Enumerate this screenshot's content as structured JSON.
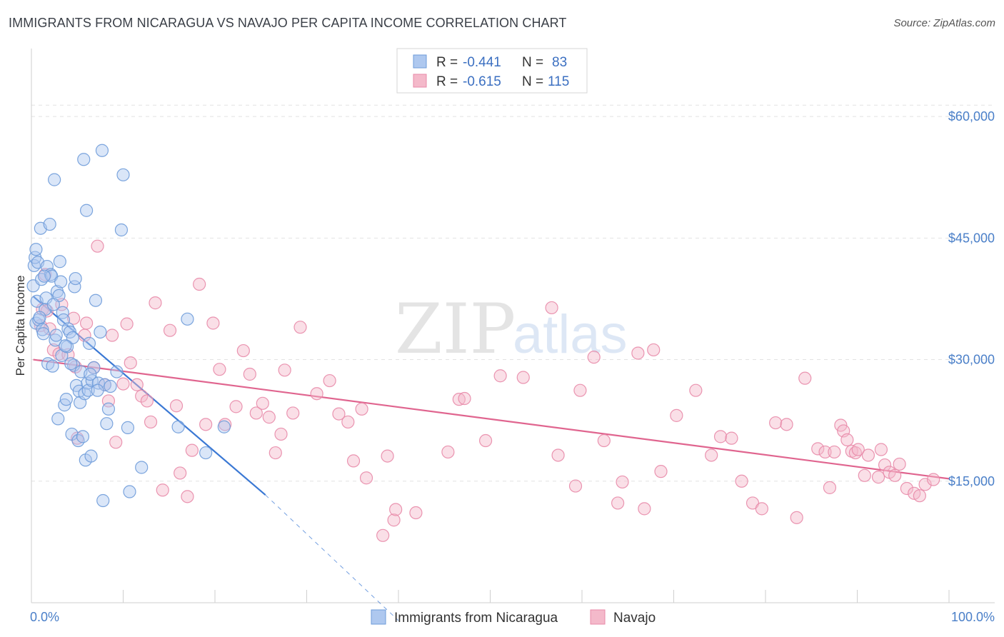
{
  "title": "IMMIGRANTS FROM NICARAGUA VS NAVAJO PER CAPITA INCOME CORRELATION CHART",
  "source": "Source: ZipAtlas.com",
  "watermark": {
    "zip": "ZIP",
    "atlas": "atlas"
  },
  "colors": {
    "blue_fill": "#aec8ef",
    "blue_stroke": "#6e9bd9",
    "blue_line": "#3a78d4",
    "pink_fill": "#f4b9ca",
    "pink_stroke": "#e88aa8",
    "pink_line": "#e0658f",
    "tick_label": "#4a7fc8",
    "grid": "#e2e2e2"
  },
  "legend": {
    "rows": [
      {
        "r_label": "R =",
        "r_value": "-0.441",
        "n_label": "N =",
        "n_value": "83"
      },
      {
        "r_label": "R =",
        "r_value": "-0.615",
        "n_label": "N =",
        "n_value": "115"
      }
    ]
  },
  "chart_data": {
    "type": "scatter",
    "xlabel": "",
    "ylabel": "Per Capita Income",
    "xlim": [
      0,
      100
    ],
    "ylim": [
      0,
      67500
    ],
    "x_tick_labels": [
      "0.0%",
      "100.0%"
    ],
    "y_ticks": [
      15000,
      30000,
      45000,
      60000
    ],
    "y_tick_labels": [
      "$15,000",
      "$30,000",
      "$45,000",
      "$60,000"
    ],
    "grid": "horizontal dashed",
    "legend_position": "top-center",
    "series": [
      {
        "name": "Immigrants from Nicaragua",
        "color": "blue",
        "trend": {
          "x0": 0.2,
          "y0": 37800,
          "x1": 25.5,
          "y1": 13300,
          "dash_to_x": 40,
          "dash_to_y": -2200
        },
        "points": [
          [
            0.2,
            39100
          ],
          [
            0.3,
            41600
          ],
          [
            0.4,
            42600
          ],
          [
            0.5,
            43600
          ],
          [
            0.5,
            34500
          ],
          [
            0.6,
            37200
          ],
          [
            0.7,
            42000
          ],
          [
            0.8,
            34900
          ],
          [
            1.0,
            46200
          ],
          [
            1.1,
            39900
          ],
          [
            1.2,
            33700
          ],
          [
            1.3,
            33200
          ],
          [
            1.5,
            36200
          ],
          [
            1.6,
            37600
          ],
          [
            1.7,
            41500
          ],
          [
            1.8,
            29500
          ],
          [
            2.0,
            46700
          ],
          [
            2.1,
            40500
          ],
          [
            2.2,
            40300
          ],
          [
            2.3,
            29200
          ],
          [
            2.5,
            52200
          ],
          [
            2.6,
            32400
          ],
          [
            2.7,
            33000
          ],
          [
            2.8,
            38400
          ],
          [
            2.9,
            22700
          ],
          [
            3.0,
            37900
          ],
          [
            3.1,
            42100
          ],
          [
            3.2,
            39600
          ],
          [
            3.3,
            30500
          ],
          [
            3.4,
            35800
          ],
          [
            3.5,
            34900
          ],
          [
            3.6,
            24400
          ],
          [
            3.8,
            25100
          ],
          [
            3.9,
            31600
          ],
          [
            4.0,
            33800
          ],
          [
            4.2,
            33400
          ],
          [
            4.4,
            20800
          ],
          [
            4.5,
            32700
          ],
          [
            4.6,
            29300
          ],
          [
            4.7,
            39000
          ],
          [
            4.8,
            40000
          ],
          [
            4.9,
            26800
          ],
          [
            5.1,
            20000
          ],
          [
            5.2,
            26100
          ],
          [
            5.3,
            24700
          ],
          [
            5.4,
            28500
          ],
          [
            5.6,
            20500
          ],
          [
            5.7,
            54700
          ],
          [
            5.8,
            25800
          ],
          [
            5.9,
            17600
          ],
          [
            6.0,
            48400
          ],
          [
            6.1,
            27100
          ],
          [
            6.2,
            26200
          ],
          [
            6.3,
            32000
          ],
          [
            6.5,
            18100
          ],
          [
            6.6,
            27400
          ],
          [
            6.8,
            29000
          ],
          [
            7.0,
            37300
          ],
          [
            7.3,
            27100
          ],
          [
            7.5,
            33400
          ],
          [
            7.7,
            55800
          ],
          [
            7.8,
            12600
          ],
          [
            8.0,
            26900
          ],
          [
            8.2,
            22100
          ],
          [
            8.4,
            23900
          ],
          [
            8.6,
            26700
          ],
          [
            9.3,
            28500
          ],
          [
            9.8,
            46000
          ],
          [
            10.0,
            52800
          ],
          [
            10.5,
            21600
          ],
          [
            10.7,
            13700
          ],
          [
            12.0,
            16700
          ],
          [
            16.0,
            21700
          ],
          [
            17.0,
            35000
          ],
          [
            19.0,
            18500
          ],
          [
            21.0,
            21700
          ],
          [
            0.9,
            35200
          ],
          [
            1.4,
            40300
          ],
          [
            2.4,
            36800
          ],
          [
            3.7,
            31700
          ],
          [
            4.3,
            29500
          ],
          [
            6.4,
            28200
          ],
          [
            7.2,
            26200
          ]
        ]
      },
      {
        "name": "Navajo",
        "color": "pink",
        "trend": {
          "x0": 0.2,
          "y0": 30000,
          "x1": 100,
          "y1": 15300
        },
        "points": [
          [
            1.0,
            34200
          ],
          [
            1.2,
            36200
          ],
          [
            1.5,
            40500
          ],
          [
            1.7,
            36000
          ],
          [
            2.0,
            33800
          ],
          [
            2.4,
            31200
          ],
          [
            3.0,
            30700
          ],
          [
            3.3,
            36800
          ],
          [
            4.0,
            30600
          ],
          [
            4.6,
            35100
          ],
          [
            4.8,
            29100
          ],
          [
            5.0,
            20300
          ],
          [
            5.8,
            33000
          ],
          [
            6.0,
            34500
          ],
          [
            6.8,
            29000
          ],
          [
            7.2,
            44000
          ],
          [
            8.0,
            26900
          ],
          [
            8.4,
            24900
          ],
          [
            8.8,
            33000
          ],
          [
            9.2,
            19800
          ],
          [
            10.0,
            27000
          ],
          [
            10.4,
            34400
          ],
          [
            10.8,
            29600
          ],
          [
            11.5,
            26900
          ],
          [
            12.0,
            25500
          ],
          [
            12.6,
            24900
          ],
          [
            13.0,
            22300
          ],
          [
            13.5,
            37000
          ],
          [
            14.3,
            13900
          ],
          [
            15.1,
            33600
          ],
          [
            15.8,
            24300
          ],
          [
            16.2,
            16000
          ],
          [
            17.0,
            13100
          ],
          [
            17.5,
            18800
          ],
          [
            18.3,
            39300
          ],
          [
            19.0,
            22000
          ],
          [
            19.8,
            34500
          ],
          [
            20.5,
            28800
          ],
          [
            21.1,
            22000
          ],
          [
            22.3,
            24200
          ],
          [
            23.1,
            31100
          ],
          [
            23.8,
            28200
          ],
          [
            24.5,
            23400
          ],
          [
            25.2,
            24600
          ],
          [
            25.9,
            22900
          ],
          [
            26.6,
            18500
          ],
          [
            27.2,
            20800
          ],
          [
            27.6,
            28700
          ],
          [
            28.5,
            23400
          ],
          [
            29.3,
            34000
          ],
          [
            31.1,
            25800
          ],
          [
            32.5,
            27400
          ],
          [
            33.5,
            23300
          ],
          [
            34.5,
            22300
          ],
          [
            35.1,
            17500
          ],
          [
            36.0,
            23900
          ],
          [
            36.5,
            15400
          ],
          [
            38.3,
            8300
          ],
          [
            38.8,
            18100
          ],
          [
            39.5,
            10200
          ],
          [
            39.7,
            11500
          ],
          [
            41.9,
            11100
          ],
          [
            45.4,
            18600
          ],
          [
            46.6,
            25100
          ],
          [
            47.2,
            25200
          ],
          [
            49.5,
            20000
          ],
          [
            51.1,
            28000
          ],
          [
            53.6,
            27800
          ],
          [
            56.7,
            36400
          ],
          [
            57.4,
            18200
          ],
          [
            59.3,
            14400
          ],
          [
            59.8,
            26200
          ],
          [
            61.3,
            30300
          ],
          [
            62.4,
            20000
          ],
          [
            63.9,
            12300
          ],
          [
            64.4,
            14900
          ],
          [
            66.1,
            30800
          ],
          [
            66.8,
            11600
          ],
          [
            67.8,
            31200
          ],
          [
            68.6,
            16200
          ],
          [
            70.3,
            23100
          ],
          [
            72.4,
            26200
          ],
          [
            74.1,
            18200
          ],
          [
            75.1,
            20500
          ],
          [
            76.3,
            20300
          ],
          [
            77.4,
            15000
          ],
          [
            78.6,
            12300
          ],
          [
            79.6,
            11600
          ],
          [
            81.1,
            22200
          ],
          [
            82.3,
            22000
          ],
          [
            83.4,
            10500
          ],
          [
            84.3,
            27700
          ],
          [
            85.7,
            19000
          ],
          [
            86.5,
            18600
          ],
          [
            87.0,
            14200
          ],
          [
            87.5,
            18600
          ],
          [
            88.2,
            21900
          ],
          [
            88.5,
            21200
          ],
          [
            88.9,
            20100
          ],
          [
            89.4,
            18700
          ],
          [
            89.8,
            18500
          ],
          [
            90.1,
            18900
          ],
          [
            90.8,
            15700
          ],
          [
            91.2,
            18200
          ],
          [
            92.3,
            15500
          ],
          [
            92.6,
            18900
          ],
          [
            93.0,
            17000
          ],
          [
            93.5,
            16100
          ],
          [
            94.1,
            15700
          ],
          [
            94.6,
            17100
          ],
          [
            95.4,
            14100
          ],
          [
            96.2,
            13500
          ],
          [
            96.8,
            13200
          ],
          [
            97.4,
            14600
          ],
          [
            98.3,
            15200
          ]
        ]
      }
    ]
  }
}
